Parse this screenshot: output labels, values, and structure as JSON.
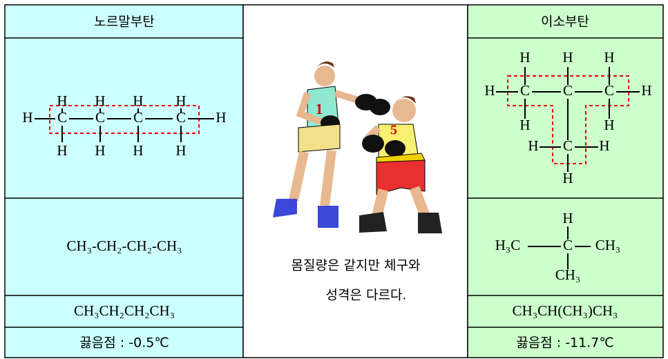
{
  "left": {
    "title": "노르말부탄",
    "structure": [
      "H",
      "H",
      "H",
      "H",
      "H",
      "C",
      "C",
      "C",
      "C",
      "H",
      "H",
      "H",
      "H",
      "H"
    ],
    "formula": "CH₃-CH₂-CH₂-CH₃",
    "condensed": "CH₃CH₂CH₂CH₃",
    "boiling_point": "끓음점 : -0.5℃"
  },
  "middle": {
    "caption": [
      "몸질량은 같지만 체구와",
      "성격은 다르다."
    ]
  },
  "right": {
    "title": "이소부탄",
    "structure": [
      "H",
      "H",
      "H",
      "H",
      "C",
      "C",
      "C",
      "H",
      "H",
      "H",
      "H",
      "C",
      "H",
      "H"
    ],
    "formula": [
      "H",
      "H₃C",
      "C",
      "CH₃",
      "CH₃"
    ],
    "condensed": "CH₃CH(CH₃)CH₃",
    "boiling_point": "끓음점 : -11.7℃"
  }
}
